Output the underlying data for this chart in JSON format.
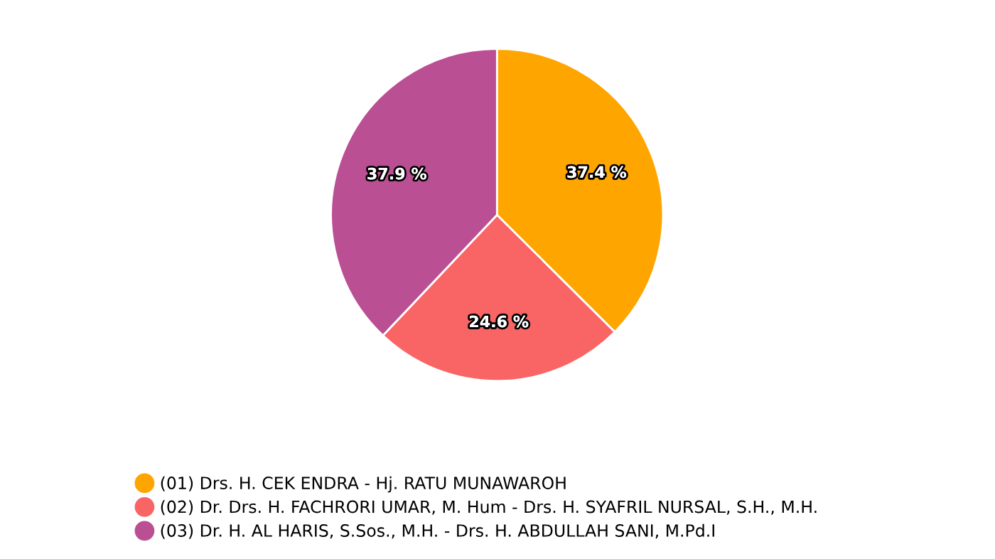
{
  "chart_data": {
    "type": "pie",
    "categories": [
      "(01) Drs. H. CEK ENDRA - Hj. RATU MUNAWAROH",
      "(02) Dr. Drs. H. FACHRORI UMAR, M. Hum - Drs. H. SYAFRIL NURSAL, S.H., M.H.",
      "(03) Dr. H. AL HARIS, S.Sos., M.H. - Drs. H. ABDULLAH SANI, M.Pd.I"
    ],
    "values": [
      37.4,
      24.6,
      37.9
    ],
    "value_labels": [
      "37.4 %",
      "24.6 %",
      "37.9 %"
    ],
    "colors": [
      "#ffa500",
      "#f96565",
      "#bb4f94"
    ],
    "legend": "bottom"
  }
}
